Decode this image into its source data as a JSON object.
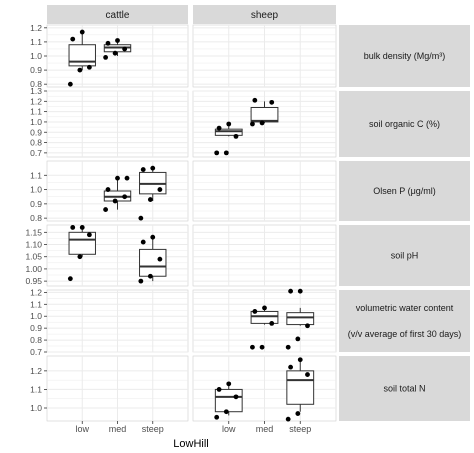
{
  "chart_data": {
    "type": "boxplot",
    "facet_columns": [
      "cattle",
      "sheep"
    ],
    "x_categories": [
      "low",
      "med",
      "steep"
    ],
    "xlabel": "LowHill",
    "rows": [
      {
        "label_lines": [
          "bulk density (Mg/m³)"
        ],
        "ylim": [
          0.78,
          1.22
        ],
        "yticks": [
          0.8,
          0.9,
          1.0,
          1.1,
          1.2
        ],
        "ytick_labels": [
          "0.8",
          "0.9",
          "1.0",
          "1.1",
          "1.2"
        ],
        "panels": {
          "cattle": [
            {
              "cat": "low",
              "lw": 0.9,
              "q1": 0.93,
              "med": 0.96,
              "q3": 1.08,
              "uw": 1.17,
              "points": [
                0.8,
                0.9,
                0.92,
                1.12,
                1.17
              ]
            },
            {
              "cat": "med",
              "lw": 1.0,
              "q1": 1.03,
              "med": 1.06,
              "q3": 1.08,
              "uw": 1.1,
              "points": [
                0.99,
                1.02,
                1.05,
                1.09,
                1.11
              ]
            }
          ],
          "sheep": []
        }
      },
      {
        "label_lines": [
          "soil organic C (%)"
        ],
        "ylim": [
          0.66,
          1.3
        ],
        "yticks": [
          0.7,
          0.8,
          0.9,
          1.0,
          1.1,
          1.2,
          1.3
        ],
        "ytick_labels": [
          "0.7",
          "0.8",
          "0.9",
          "1.0",
          "1.1",
          "1.2",
          "1.3"
        ],
        "panels": {
          "cattle": [],
          "sheep": [
            {
              "cat": "low",
              "lw": 0.86,
              "q1": 0.87,
              "med": 0.91,
              "q3": 0.93,
              "uw": 0.96,
              "points": [
                0.7,
                0.7,
                0.86,
                0.94,
                0.98
              ]
            },
            {
              "cat": "med",
              "lw": 0.99,
              "q1": 1.0,
              "med": 1.01,
              "q3": 1.14,
              "uw": 1.2,
              "points": [
                0.98,
                0.99,
                1.19,
                1.21
              ]
            }
          ]
        }
      },
      {
        "label_lines": [
          "Olsen P (μg/ml)"
        ],
        "ylim": [
          0.78,
          1.2
        ],
        "yticks": [
          0.8,
          0.9,
          1.0,
          1.1
        ],
        "ytick_labels": [
          "0.8",
          "0.9",
          "1.0",
          "1.1"
        ],
        "panels": {
          "cattle": [
            {
              "cat": "med",
              "lw": 0.86,
              "q1": 0.92,
              "med": 0.95,
              "q3": 0.99,
              "uw": 1.08,
              "points": [
                0.86,
                0.92,
                0.95,
                1.0,
                1.08,
                1.08
              ]
            },
            {
              "cat": "steep",
              "lw": 0.92,
              "q1": 0.97,
              "med": 1.04,
              "q3": 1.12,
              "uw": 1.15,
              "points": [
                0.8,
                0.93,
                1.0,
                1.14,
                1.15
              ]
            }
          ],
          "sheep": []
        }
      },
      {
        "label_lines": [
          "soil pH"
        ],
        "ylim": [
          0.93,
          1.18
        ],
        "yticks": [
          0.95,
          1.0,
          1.05,
          1.1,
          1.15
        ],
        "ytick_labels": [
          "0.95",
          "1.00",
          "1.05",
          "1.10",
          "1.15"
        ],
        "panels": {
          "cattle": [
            {
              "cat": "low",
              "lw": 1.05,
              "q1": 1.06,
              "med": 1.12,
              "q3": 1.15,
              "uw": 1.17,
              "points": [
                0.96,
                1.05,
                1.14,
                1.17,
                1.17
              ]
            },
            {
              "cat": "steep",
              "lw": 0.95,
              "q1": 0.97,
              "med": 1.01,
              "q3": 1.08,
              "uw": 1.13,
              "points": [
                0.95,
                0.97,
                1.04,
                1.11,
                1.13
              ]
            }
          ],
          "sheep": []
        }
      },
      {
        "label_lines": [
          "volumetric water content",
          "(v/v average of first 30 days)"
        ],
        "ylim": [
          0.7,
          1.22
        ],
        "yticks": [
          0.7,
          0.8,
          0.9,
          1.0,
          1.1,
          1.2
        ],
        "ytick_labels": [
          "0.7",
          "0.8",
          "0.9",
          "1.0",
          "1.1",
          "1.2"
        ],
        "panels": {
          "cattle": [],
          "sheep": [
            {
              "cat": "med",
              "lw": 0.93,
              "q1": 0.94,
              "med": 1.0,
              "q3": 1.04,
              "uw": 1.07,
              "points": [
                0.74,
                0.74,
                0.94,
                1.04,
                1.07
              ]
            },
            {
              "cat": "steep",
              "lw": 0.92,
              "q1": 0.93,
              "med": 0.99,
              "q3": 1.03,
              "uw": 1.07,
              "points": [
                0.74,
                0.81,
                0.92,
                1.21,
                1.21
              ]
            }
          ]
        }
      },
      {
        "label_lines": [
          "soil total N"
        ],
        "ylim": [
          0.93,
          1.28
        ],
        "yticks": [
          1.0,
          1.1,
          1.2
        ],
        "ytick_labels": [
          "1.0",
          "1.1",
          "1.2"
        ],
        "panels": {
          "cattle": [],
          "sheep": [
            {
              "cat": "low",
              "lw": 0.96,
              "q1": 0.98,
              "med": 1.06,
              "q3": 1.1,
              "uw": 1.13,
              "points": [
                0.95,
                0.98,
                1.06,
                1.1,
                1.13
              ]
            },
            {
              "cat": "steep",
              "lw": 0.98,
              "q1": 1.02,
              "med": 1.15,
              "q3": 1.2,
              "uw": 1.25,
              "points": [
                0.94,
                0.97,
                1.18,
                1.22,
                1.26
              ]
            }
          ]
        }
      }
    ]
  }
}
